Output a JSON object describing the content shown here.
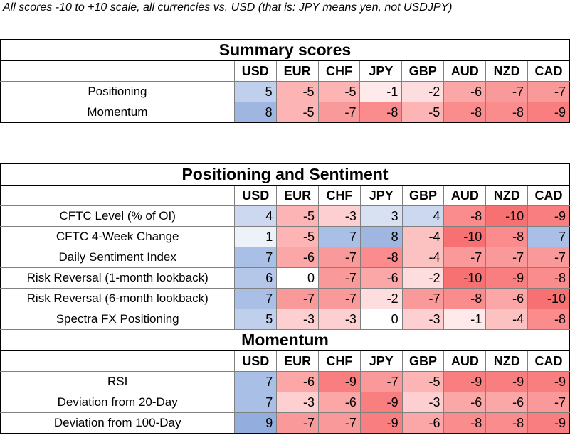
{
  "note": "All scores -10 to +10 scale, all currencies vs. USD (that is: JPY means yen, not USDJPY)",
  "currencies": [
    "USD",
    "EUR",
    "CHF",
    "JPY",
    "GBP",
    "AUD",
    "NZD",
    "CAD"
  ],
  "chart_data": {
    "type": "heatmap",
    "scale": [
      -10,
      10
    ],
    "colors": {
      "positive": "#7b9bd6",
      "neutral": "#ffffff",
      "negative": "#f8696b"
    },
    "tables": [
      {
        "title": "Summary scores",
        "sections": [
          {
            "rows": [
              {
                "label": "Positioning",
                "values": [
                  5,
                  -5,
                  -5,
                  -1,
                  -2,
                  -6,
                  -7,
                  -7
                ]
              },
              {
                "label": "Momentum",
                "values": [
                  8,
                  -5,
                  -7,
                  -8,
                  -5,
                  -8,
                  -8,
                  -9
                ]
              }
            ]
          }
        ]
      },
      {
        "title": "Positioning and Sentiment",
        "sections": [
          {
            "rows": [
              {
                "label": "CFTC Level (% of OI)",
                "values": [
                  4,
                  -5,
                  -3,
                  3,
                  4,
                  -8,
                  -10,
                  -9
                ]
              },
              {
                "label": "CFTC 4-Week Change",
                "values": [
                  1,
                  -5,
                  7,
                  8,
                  -4,
                  -10,
                  -8,
                  7
                ]
              },
              {
                "label": "Daily Sentiment Index",
                "values": [
                  7,
                  -6,
                  -7,
                  -8,
                  -4,
                  -7,
                  -7,
                  -7
                ]
              },
              {
                "label": "Risk Reversal (1-month lookback)",
                "values": [
                  6,
                  0,
                  -7,
                  -6,
                  -2,
                  -10,
                  -9,
                  -8
                ]
              },
              {
                "label": "Risk Reversal (6-month lookback)",
                "values": [
                  7,
                  -7,
                  -7,
                  -2,
                  -7,
                  -8,
                  -6,
                  -10
                ]
              },
              {
                "label": "Spectra FX Positioning",
                "values": [
                  5,
                  -3,
                  -3,
                  0,
                  -3,
                  -1,
                  -4,
                  -8
                ]
              }
            ]
          },
          {
            "subtitle": "Momentum",
            "rows": [
              {
                "label": "RSI",
                "values": [
                  7,
                  -6,
                  -9,
                  -7,
                  -5,
                  -9,
                  -9,
                  -9
                ]
              },
              {
                "label": "Deviation from 20-Day",
                "values": [
                  7,
                  -3,
                  -6,
                  -9,
                  -3,
                  -6,
                  -6,
                  -7
                ]
              },
              {
                "label": "Deviation from 100-Day",
                "values": [
                  9,
                  -7,
                  -7,
                  -9,
                  -6,
                  -8,
                  -8,
                  -9
                ]
              }
            ]
          }
        ]
      }
    ]
  }
}
